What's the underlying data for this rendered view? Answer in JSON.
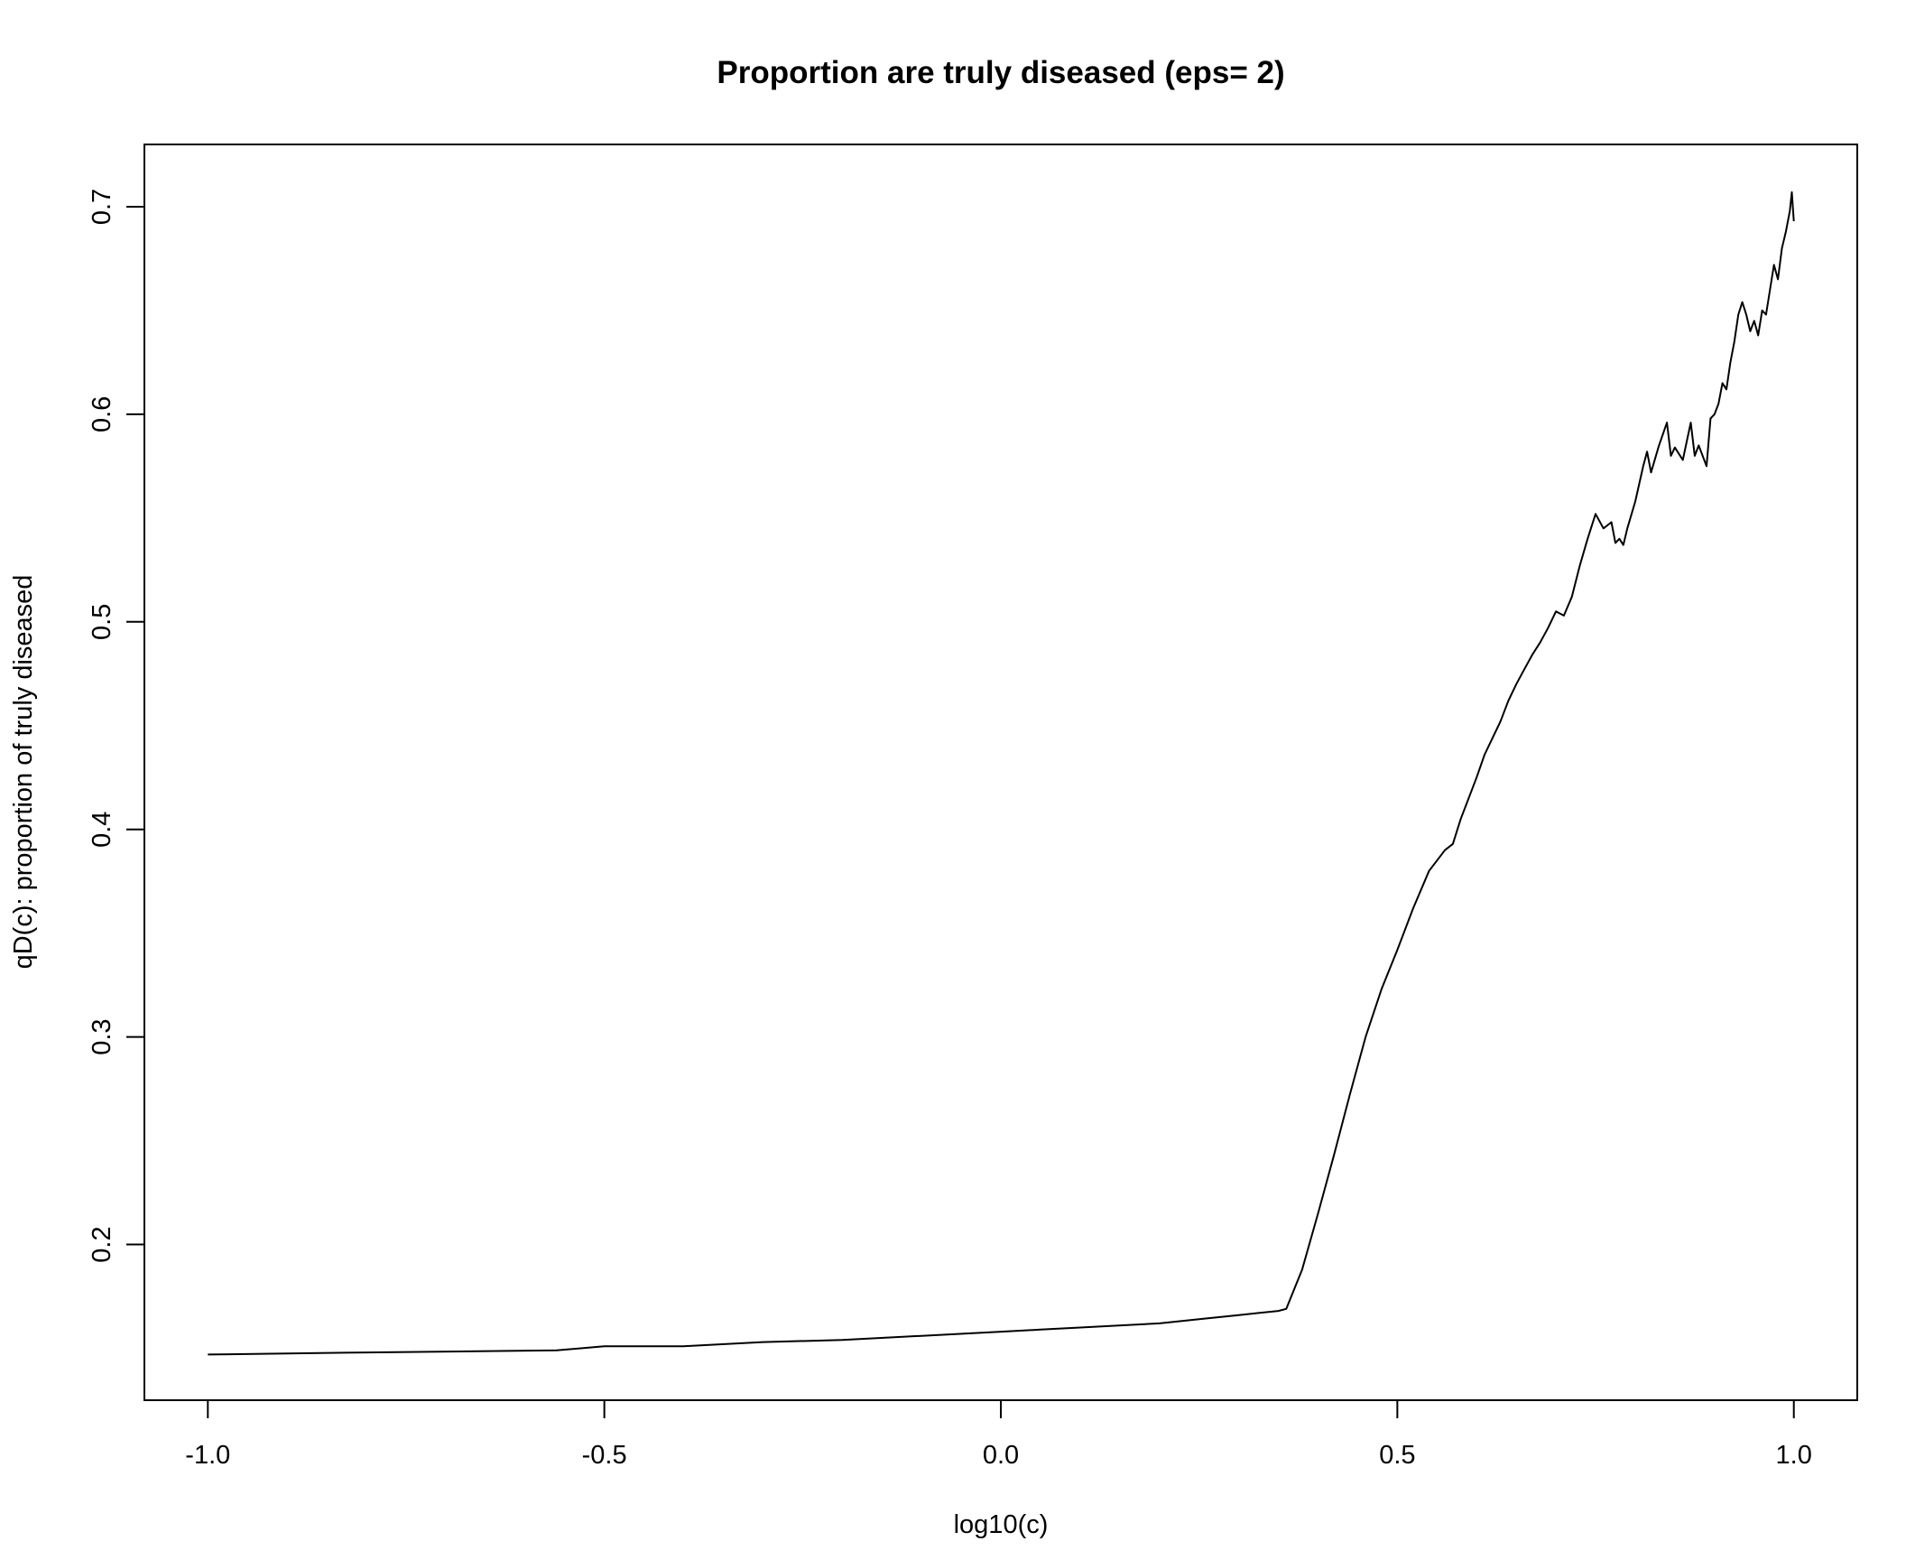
{
  "chart_data": {
    "type": "line",
    "title": "Proportion are truly diseased (eps= 2)",
    "xlabel": "log10(c)",
    "ylabel": "qD(c): proportion of truly diseased",
    "xlim": [
      -1.08,
      1.08
    ],
    "ylim": [
      0.125,
      0.73
    ],
    "xticks": [
      -1.0,
      -0.5,
      0.0,
      0.5,
      1.0
    ],
    "xtick_labels": [
      "-1.0",
      "-0.5",
      "0.0",
      "0.5",
      "1.0"
    ],
    "yticks": [
      0.2,
      0.3,
      0.4,
      0.5,
      0.6,
      0.7
    ],
    "ytick_labels": [
      "0.2",
      "0.3",
      "0.4",
      "0.5",
      "0.6",
      "0.7"
    ],
    "grid": false,
    "legend": "none",
    "line_color": "#000000",
    "series": [
      {
        "x": [
          -1.0,
          -0.8,
          -0.56,
          -0.5,
          -0.4,
          -0.3,
          -0.2,
          -0.1,
          0.0,
          0.05,
          0.1,
          0.2,
          0.25,
          0.3,
          0.35,
          0.36,
          0.38,
          0.4,
          0.42,
          0.44,
          0.46,
          0.48,
          0.5,
          0.52,
          0.54,
          0.56,
          0.57,
          0.58,
          0.59,
          0.6,
          0.61,
          0.62,
          0.63,
          0.64,
          0.65,
          0.66,
          0.67,
          0.68,
          0.69,
          0.7,
          0.71,
          0.72,
          0.73,
          0.74,
          0.75,
          0.76,
          0.77,
          0.775,
          0.78,
          0.785,
          0.79,
          0.8,
          0.81,
          0.815,
          0.82,
          0.83,
          0.84,
          0.845,
          0.85,
          0.86,
          0.87,
          0.875,
          0.88,
          0.89,
          0.895,
          0.9,
          0.905,
          0.91,
          0.915,
          0.92,
          0.925,
          0.93,
          0.935,
          0.94,
          0.945,
          0.95,
          0.955,
          0.96,
          0.965,
          0.97,
          0.975,
          0.98,
          0.985,
          0.99,
          0.995,
          0.9975,
          1.0
        ],
        "y": [
          0.147,
          0.148,
          0.149,
          0.151,
          0.151,
          0.153,
          0.154,
          0.156,
          0.158,
          0.159,
          0.16,
          0.162,
          0.164,
          0.166,
          0.168,
          0.169,
          0.188,
          0.215,
          0.243,
          0.272,
          0.3,
          0.323,
          0.342,
          0.362,
          0.38,
          0.39,
          0.393,
          0.405,
          0.415,
          0.425,
          0.436,
          0.444,
          0.452,
          0.462,
          0.47,
          0.477,
          0.484,
          0.49,
          0.497,
          0.505,
          0.503,
          0.512,
          0.527,
          0.54,
          0.552,
          0.545,
          0.548,
          0.538,
          0.54,
          0.537,
          0.545,
          0.558,
          0.575,
          0.582,
          0.572,
          0.585,
          0.596,
          0.58,
          0.584,
          0.578,
          0.596,
          0.58,
          0.585,
          0.575,
          0.598,
          0.6,
          0.605,
          0.615,
          0.612,
          0.625,
          0.635,
          0.648,
          0.654,
          0.648,
          0.64,
          0.645,
          0.638,
          0.65,
          0.648,
          0.66,
          0.672,
          0.665,
          0.68,
          0.688,
          0.698,
          0.707,
          0.693
        ]
      }
    ]
  }
}
